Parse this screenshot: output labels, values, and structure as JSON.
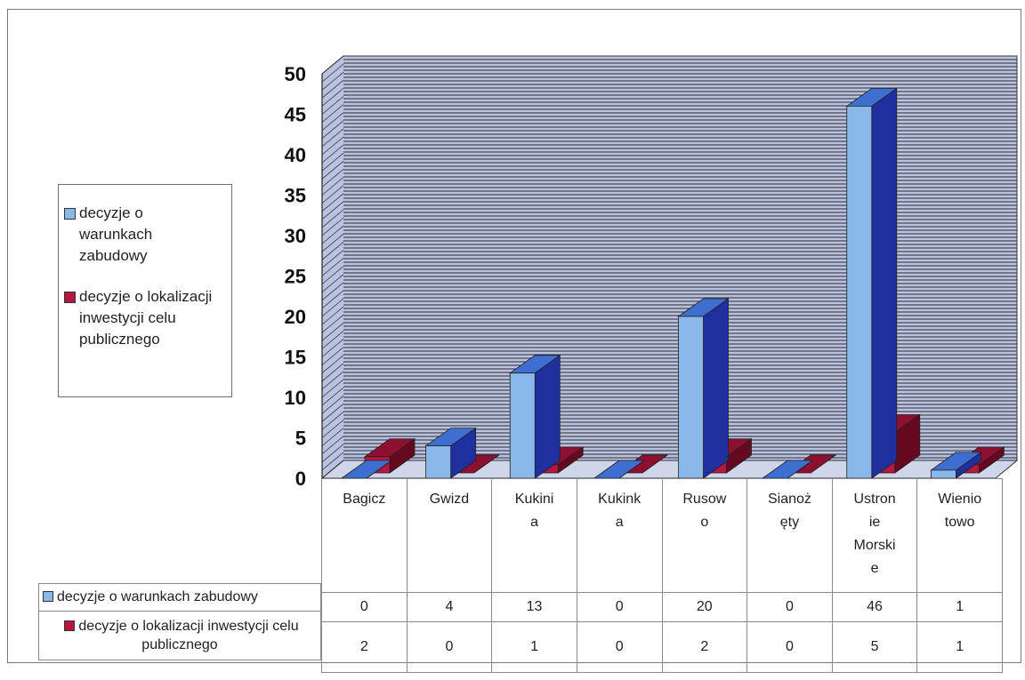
{
  "chart_data": {
    "type": "bar",
    "categories": [
      "Bagicz",
      "Gwizd",
      "Kukinia",
      "Kukinka",
      "Rusowo",
      "Sianożęty",
      "Ustronie Morskie",
      "Wieniotowo"
    ],
    "category_display": [
      [
        "Bagicz"
      ],
      [
        "Gwizd"
      ],
      [
        "Kukini",
        "a"
      ],
      [
        "Kukink",
        "a"
      ],
      [
        "Rusow",
        "o"
      ],
      [
        "Sianoż",
        "ęty"
      ],
      [
        "Ustron",
        "ie",
        "Morski",
        "e"
      ],
      [
        "Wienio",
        "towo"
      ]
    ],
    "series": [
      {
        "name": "decyzje o warunkach zabudowy",
        "legend_lines": [
          "decyzje o",
          "warunkach",
          "zabudowy"
        ],
        "values": [
          0,
          4,
          13,
          0,
          20,
          0,
          46,
          1
        ]
      },
      {
        "name": "decyzje o lokalizacji inwestycji celu publicznego",
        "legend_lines": [
          "decyzje o lokalizacji",
          "inwestycji celu",
          "publicznego"
        ],
        "values": [
          2,
          0,
          1,
          0,
          2,
          0,
          5,
          1
        ]
      }
    ],
    "table_row_labels": [
      [
        "decyzje o warunkach zabudowy"
      ],
      [
        "decyzje o lokalizacji inwestycji celu",
        "publicznego"
      ]
    ],
    "yticks": [
      "0",
      "5",
      "10",
      "15",
      "20",
      "25",
      "30",
      "35",
      "40",
      "45",
      "50"
    ],
    "ylim": [
      0,
      50
    ],
    "grid": true,
    "legend_position": "left",
    "colors": {
      "series1_front": "#8ab8e8",
      "series1_side": "#1f2f9e",
      "series1_top": "#3e6fd0",
      "series2_front": "#b5173f",
      "series2_side": "#650820",
      "series2_top": "#8e1030",
      "wall": "#b9c2e0",
      "gridline": "#2b2b2b"
    }
  }
}
